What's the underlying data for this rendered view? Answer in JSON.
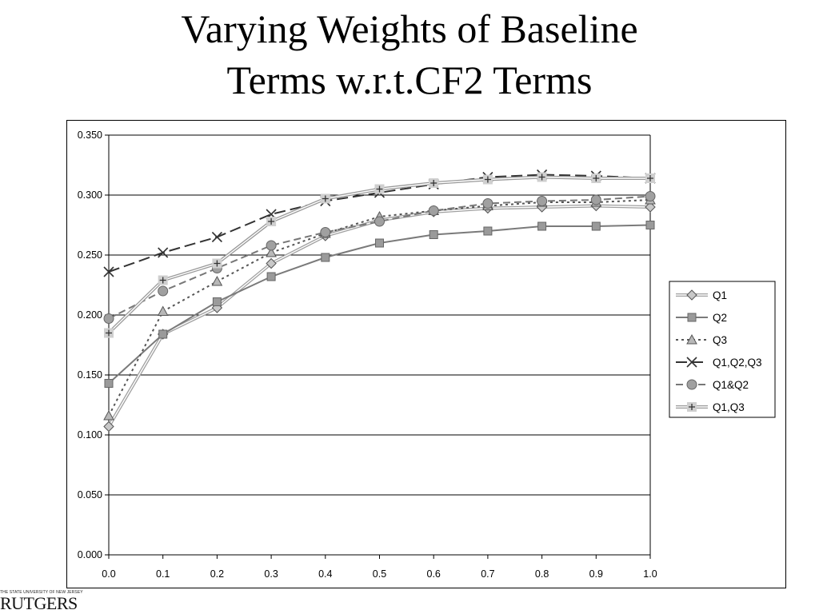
{
  "slide": {
    "title_line1": "Varying Weights of Baseline",
    "title_line2": "Terms w.r.t.CF2 Terms"
  },
  "logo": {
    "small_text": "THE STATE UNIVERSITY OF NEW JERSEY",
    "big_text": "RUTGERS"
  },
  "chart_data": {
    "type": "line",
    "title": "",
    "xlabel": "",
    "ylabel": "",
    "x": [
      0.0,
      0.1,
      0.2,
      0.3,
      0.4,
      0.5,
      0.6,
      0.7,
      0.8,
      0.9,
      1.0
    ],
    "x_tick_labels": [
      "0.0",
      "0.1",
      "0.2",
      "0.3",
      "0.4",
      "0.5",
      "0.6",
      "0.7",
      "0.8",
      "0.9",
      "1.0"
    ],
    "y_tick_labels": [
      "0.000",
      "0.050",
      "0.100",
      "0.150",
      "0.200",
      "0.250",
      "0.300",
      "0.350"
    ],
    "ylim": [
      0.0,
      0.35
    ],
    "xlim": [
      0.0,
      1.0
    ],
    "grid": "horizontal",
    "legend_position": "right",
    "series": [
      {
        "name": "Q1",
        "marker": "diamond",
        "line_style": "double",
        "color": "#a0a0a0",
        "values": [
          0.107,
          0.184,
          0.206,
          0.243,
          0.266,
          0.279,
          0.286,
          0.289,
          0.29,
          0.291,
          0.29
        ]
      },
      {
        "name": "Q2",
        "marker": "square",
        "line_style": "solid",
        "color": "#7a7a7a",
        "values": [
          0.143,
          0.184,
          0.211,
          0.232,
          0.248,
          0.26,
          0.267,
          0.27,
          0.274,
          0.274,
          0.275
        ]
      },
      {
        "name": "Q3",
        "marker": "triangle",
        "line_style": "dotted",
        "color": "#555555",
        "values": [
          0.116,
          0.203,
          0.228,
          0.252,
          0.268,
          0.282,
          0.287,
          0.291,
          0.294,
          0.294,
          0.296
        ]
      },
      {
        "name": "Q1,Q2,Q3",
        "marker": "x",
        "line_style": "long-dash",
        "color": "#333333",
        "values": [
          0.236,
          0.252,
          0.265,
          0.284,
          0.295,
          0.302,
          0.309,
          0.315,
          0.317,
          0.316,
          0.314
        ]
      },
      {
        "name": "Q1&Q2",
        "marker": "circle",
        "line_style": "dash",
        "color": "#777777",
        "values": [
          0.197,
          0.22,
          0.239,
          0.258,
          0.269,
          0.278,
          0.287,
          0.293,
          0.295,
          0.296,
          0.299
        ]
      },
      {
        "name": "Q1,Q3",
        "marker": "plus-square",
        "line_style": "double",
        "color": "#999999",
        "values": [
          0.185,
          0.229,
          0.243,
          0.278,
          0.297,
          0.305,
          0.31,
          0.313,
          0.315,
          0.314,
          0.314
        ]
      }
    ]
  }
}
